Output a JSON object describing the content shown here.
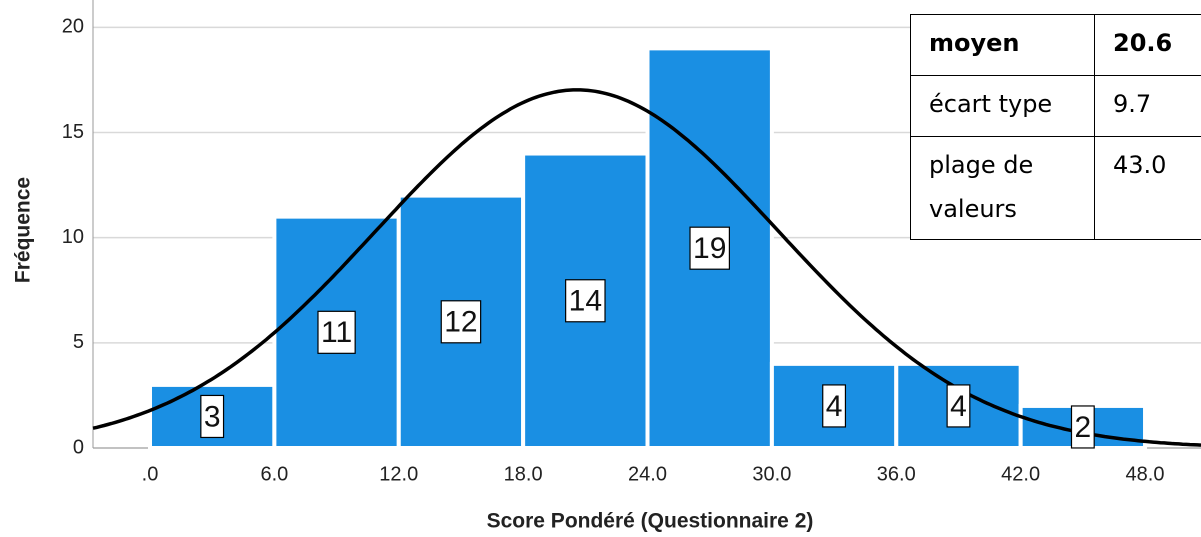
{
  "chart_data": {
    "type": "histogram",
    "bins": [
      0,
      6,
      12,
      18,
      24,
      30,
      36,
      42,
      48
    ],
    "values": [
      3,
      11,
      12,
      14,
      19,
      4,
      4,
      2
    ],
    "color": "#1a8fe3",
    "x_label": "Score Pondéré (Questionnaire 2)",
    "y_label": "Fréquence",
    "xlim": [
      -2.75,
      50.7
    ],
    "xticks": [
      {
        "value": 0,
        "label": ".0"
      },
      {
        "value": 6,
        "label": "6.0"
      },
      {
        "value": 12,
        "label": "12.0"
      },
      {
        "value": 18,
        "label": "18.0"
      },
      {
        "value": 24,
        "label": "24.0"
      },
      {
        "value": 30,
        "label": "30.0"
      },
      {
        "value": 36,
        "label": "36.0"
      },
      {
        "value": 42,
        "label": "42.0"
      },
      {
        "value": 48,
        "label": "48.0"
      }
    ],
    "ylim": [
      0,
      21.3
    ],
    "yticks": [
      0,
      5,
      10,
      15,
      20
    ],
    "grid": true,
    "normal_curve": true,
    "stats": [
      {
        "label": "moyen",
        "value": 20.6
      },
      {
        "label": "écart type",
        "value": 9.7
      },
      {
        "label": "plage de valeurs",
        "value": 43,
        "value_label": "43.0"
      }
    ]
  }
}
